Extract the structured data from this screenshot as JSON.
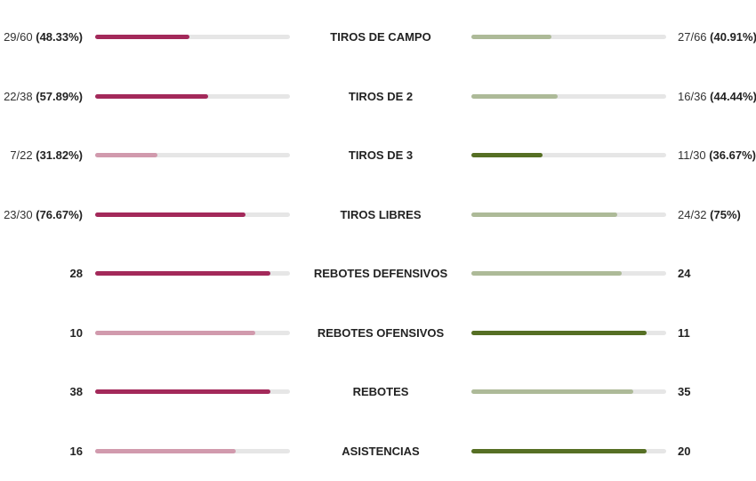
{
  "colors": {
    "left_strong": "#a3295a",
    "left_light": "#d19aad",
    "right_strong": "#566f24",
    "right_light": "#adba98",
    "track": "#e6e6e6"
  },
  "chart_data": {
    "type": "bar",
    "title": "",
    "orientation": "horizontal-comparison",
    "categories": [
      "TIROS DE CAMPO",
      "TIROS DE 2",
      "TIROS DE 3",
      "TIROS LIBRES",
      "REBOTES DEFENSIVOS",
      "REBOTES OFENSIVOS",
      "REBOTES",
      "ASISTENCIAS"
    ],
    "series": [
      {
        "name": "left_team",
        "values": [
          48.33,
          57.89,
          31.82,
          76.67,
          28,
          10,
          38,
          16
        ]
      },
      {
        "name": "right_team",
        "values": [
          40.91,
          44.44,
          36.67,
          75,
          24,
          11,
          35,
          20
        ]
      }
    ]
  },
  "rows": [
    {
      "label": "TIROS DE CAMPO",
      "left": {
        "frac": "29/60",
        "pct": "(48.33%)",
        "fill": 48.5,
        "strong": true
      },
      "right": {
        "frac": "27/66",
        "pct": "(40.91%)",
        "fill": 41,
        "strong": false
      }
    },
    {
      "label": "TIROS DE 2",
      "left": {
        "frac": "22/38",
        "pct": "(57.89%)",
        "fill": 58,
        "strong": true
      },
      "right": {
        "frac": "16/36",
        "pct": "(44.44%)",
        "fill": 44.5,
        "strong": false
      }
    },
    {
      "label": "TIROS DE 3",
      "left": {
        "frac": "7/22",
        "pct": "(31.82%)",
        "fill": 32,
        "strong": false
      },
      "right": {
        "frac": "11/30",
        "pct": "(36.67%)",
        "fill": 36.5,
        "strong": true
      }
    },
    {
      "label": "TIROS LIBRES",
      "left": {
        "frac": "23/30",
        "pct": "(76.67%)",
        "fill": 77,
        "strong": true
      },
      "right": {
        "frac": "24/32",
        "pct": "(75%)",
        "fill": 75,
        "strong": false
      }
    },
    {
      "label": "REBOTES DEFENSIVOS",
      "left": {
        "num": "28",
        "fill": 90,
        "strong": true
      },
      "right": {
        "num": "24",
        "fill": 77,
        "strong": false
      }
    },
    {
      "label": "REBOTES OFENSIVOS",
      "left": {
        "num": "10",
        "fill": 82,
        "strong": false
      },
      "right": {
        "num": "11",
        "fill": 90,
        "strong": true
      }
    },
    {
      "label": "REBOTES",
      "left": {
        "num": "38",
        "fill": 90,
        "strong": true
      },
      "right": {
        "num": "35",
        "fill": 83,
        "strong": false
      }
    },
    {
      "label": "ASISTENCIAS",
      "left": {
        "num": "16",
        "fill": 72,
        "strong": false
      },
      "right": {
        "num": "20",
        "fill": 90,
        "strong": true
      }
    }
  ]
}
